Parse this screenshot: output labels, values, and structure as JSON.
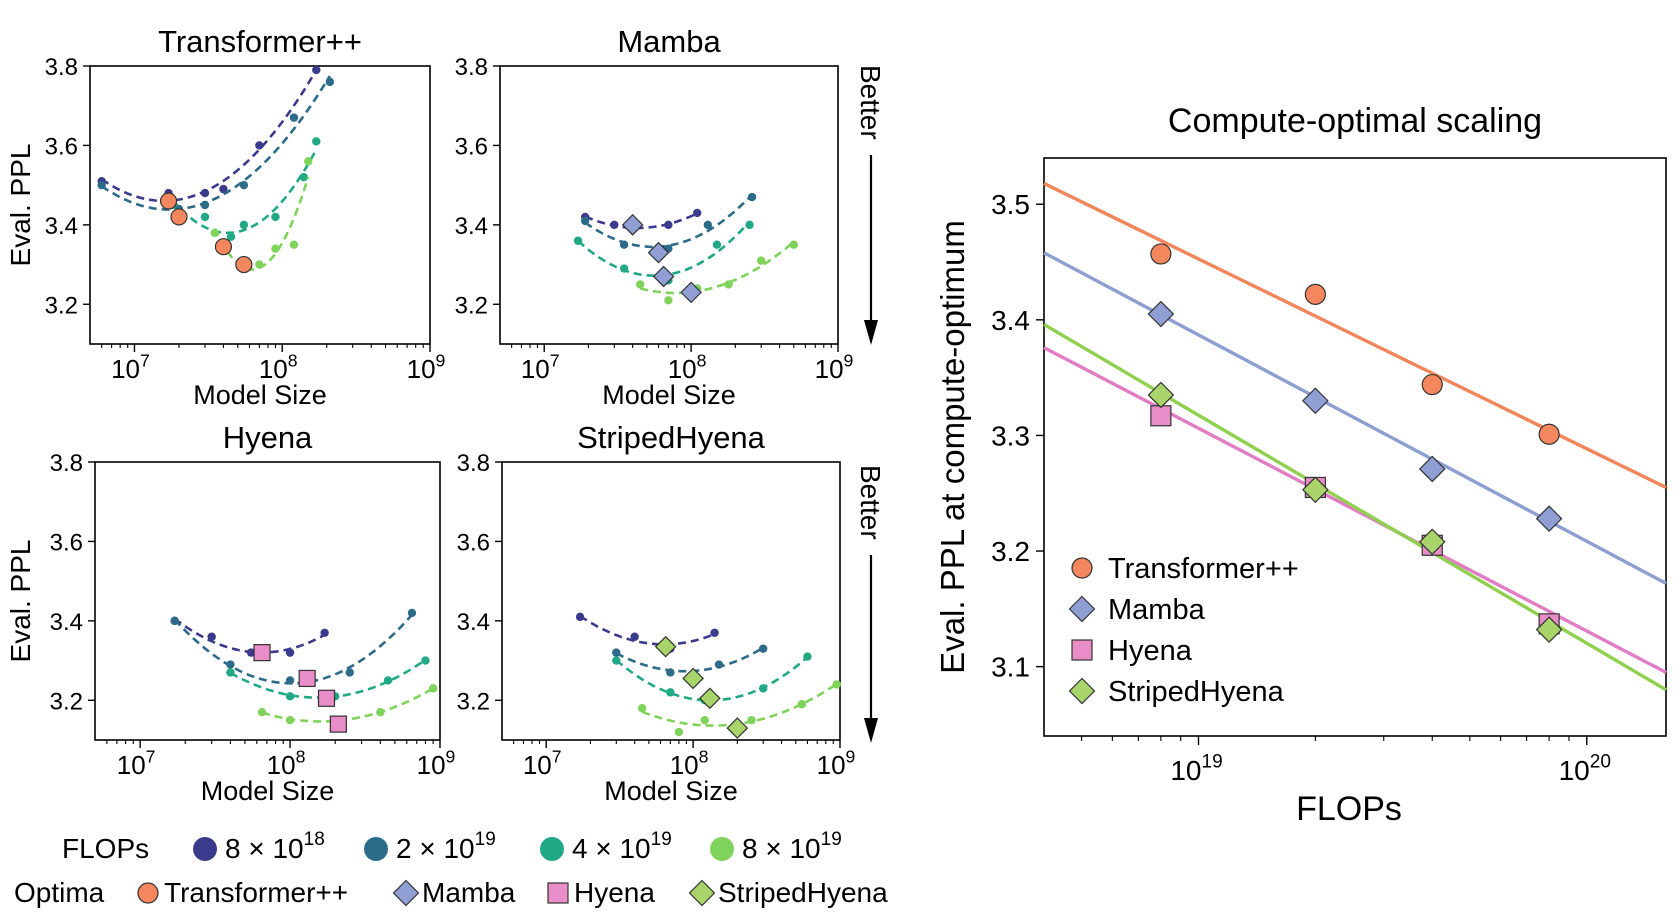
{
  "colors": {
    "flops_8e18": "#3b3b8e",
    "flops_2e19": "#2d6b8a",
    "flops_4e19": "#21a884",
    "flops_8e19": "#7fd35a",
    "transformer": "#f4875d",
    "mamba": "#8f9fd4",
    "hyena": "#e98dc8",
    "stripedhyena": "#a8d46a",
    "line_transformer": "#f0865a",
    "line_mamba": "#8d9fd0",
    "line_hyena": "#e27cc4",
    "line_stripedhyena": "#8fd14f"
  },
  "labels": {
    "better": "Better",
    "flops_legend_title": "FLOPs",
    "optima_legend_title": "Optima",
    "flops_items": [
      "8 × 10",
      "2 × 10",
      "4 × 10",
      "8 × 10"
    ],
    "flops_exponents": [
      "18",
      "19",
      "19",
      "19"
    ],
    "optima_items": [
      "Transformer++",
      "Mamba",
      "Hyena",
      "StripedHyena"
    ]
  },
  "chart_data": [
    {
      "type": "scatter",
      "title": "Transformer++",
      "xlabel": "Model Size",
      "ylabel": "Eval. PPL",
      "xscale": "log",
      "xlim": [
        5000000,
        1000000000
      ],
      "ylim": [
        3.1,
        3.8
      ],
      "xtick_labels": [
        "10",
        "10",
        "10"
      ],
      "xtick_exponents": [
        "7",
        "8",
        "9"
      ],
      "ytick_labels": [
        "3.2",
        "3.4",
        "3.6",
        "3.8"
      ],
      "optima_marker": "circle",
      "series": [
        {
          "name": "8 × 10^18",
          "x": [
            6000000,
            17000000,
            30000000,
            40000000,
            70000000,
            170000000
          ],
          "y": [
            3.51,
            3.48,
            3.48,
            3.49,
            3.6,
            3.79
          ]
        },
        {
          "name": "2 × 10^19",
          "x": [
            6000000,
            20000000,
            30000000,
            55000000,
            120000000,
            210000000
          ],
          "y": [
            3.5,
            3.44,
            3.45,
            3.5,
            3.67,
            3.76
          ]
        },
        {
          "name": "4 × 10^19",
          "x": [
            18000000,
            30000000,
            45000000,
            55000000,
            90000000,
            140000000,
            170000000
          ],
          "y": [
            3.45,
            3.42,
            3.37,
            3.4,
            3.42,
            3.52,
            3.61
          ]
        },
        {
          "name": "8 × 10^19",
          "x": [
            35000000,
            55000000,
            70000000,
            90000000,
            120000000,
            150000000
          ],
          "y": [
            3.38,
            3.31,
            3.3,
            3.34,
            3.35,
            3.56
          ]
        }
      ],
      "optima": {
        "x": [
          17000000,
          20000000,
          40000000,
          55000000
        ],
        "y": [
          3.46,
          3.42,
          3.345,
          3.3
        ]
      }
    },
    {
      "type": "scatter",
      "title": "Mamba",
      "xlabel": "Model Size",
      "ylabel": "",
      "xscale": "log",
      "xlim": [
        5000000,
        1000000000
      ],
      "ylim": [
        3.1,
        3.8
      ],
      "xtick_labels": [
        "10",
        "10",
        "10"
      ],
      "xtick_exponents": [
        "7",
        "8",
        "9"
      ],
      "ytick_labels": [
        "3.2",
        "3.4",
        "3.6",
        "3.8"
      ],
      "optima_marker": "diamond",
      "series": [
        {
          "name": "8 × 10^18",
          "x": [
            19000000,
            30000000,
            70000000,
            110000000
          ],
          "y": [
            3.42,
            3.4,
            3.4,
            3.43
          ]
        },
        {
          "name": "2 × 10^19",
          "x": [
            19000000,
            35000000,
            70000000,
            130000000,
            260000000
          ],
          "y": [
            3.41,
            3.35,
            3.34,
            3.4,
            3.47
          ]
        },
        {
          "name": "4 × 10^19",
          "x": [
            17000000,
            35000000,
            70000000,
            150000000,
            250000000
          ],
          "y": [
            3.36,
            3.29,
            3.26,
            3.35,
            3.4
          ]
        },
        {
          "name": "8 × 10^19",
          "x": [
            45000000,
            70000000,
            110000000,
            180000000,
            300000000,
            500000000
          ],
          "y": [
            3.25,
            3.21,
            3.24,
            3.25,
            3.31,
            3.35
          ]
        }
      ],
      "optima": {
        "x": [
          40000000,
          60000000,
          65000000,
          100000000
        ],
        "y": [
          3.4,
          3.33,
          3.27,
          3.23
        ]
      }
    },
    {
      "type": "scatter",
      "title": "Hyena",
      "xlabel": "Model Size",
      "ylabel": "Eval. PPL",
      "xscale": "log",
      "xlim": [
        5000000,
        1000000000
      ],
      "ylim": [
        3.1,
        3.8
      ],
      "xtick_labels": [
        "10",
        "10",
        "10"
      ],
      "xtick_exponents": [
        "7",
        "8",
        "9"
      ],
      "ytick_labels": [
        "3.2",
        "3.4",
        "3.6",
        "3.8"
      ],
      "optima_marker": "square",
      "series": [
        {
          "name": "8 × 10^18",
          "x": [
            17000000,
            30000000,
            55000000,
            100000000,
            170000000
          ],
          "y": [
            3.4,
            3.36,
            3.32,
            3.32,
            3.37
          ]
        },
        {
          "name": "2 × 10^19",
          "x": [
            17000000,
            40000000,
            100000000,
            250000000,
            650000000
          ],
          "y": [
            3.4,
            3.29,
            3.25,
            3.27,
            3.42
          ]
        },
        {
          "name": "4 × 10^19",
          "x": [
            40000000,
            100000000,
            200000000,
            450000000,
            800000000
          ],
          "y": [
            3.27,
            3.21,
            3.21,
            3.25,
            3.3
          ]
        },
        {
          "name": "8 × 10^19",
          "x": [
            65000000,
            100000000,
            200000000,
            400000000,
            900000000
          ],
          "y": [
            3.17,
            3.15,
            3.15,
            3.17,
            3.23
          ]
        }
      ],
      "optima": {
        "x": [
          65000000,
          130000000,
          175000000,
          210000000
        ],
        "y": [
          3.32,
          3.255,
          3.205,
          3.14
        ]
      }
    },
    {
      "type": "scatter",
      "title": "StripedHyena",
      "xlabel": "Model Size",
      "ylabel": "",
      "xscale": "log",
      "xlim": [
        5000000,
        1000000000
      ],
      "ylim": [
        3.1,
        3.8
      ],
      "xtick_labels": [
        "10",
        "10",
        "10"
      ],
      "xtick_exponents": [
        "7",
        "8",
        "9"
      ],
      "ytick_labels": [
        "3.2",
        "3.4",
        "3.6",
        "3.8"
      ],
      "optima_marker": "diamond",
      "series": [
        {
          "name": "8 × 10^18",
          "x": [
            17000000,
            40000000,
            70000000,
            140000000
          ],
          "y": [
            3.41,
            3.36,
            3.33,
            3.37
          ]
        },
        {
          "name": "2 × 10^19",
          "x": [
            30000000,
            70000000,
            150000000,
            300000000
          ],
          "y": [
            3.32,
            3.27,
            3.29,
            3.33
          ]
        },
        {
          "name": "4 × 10^19",
          "x": [
            30000000,
            70000000,
            120000000,
            300000000,
            600000000
          ],
          "y": [
            3.3,
            3.22,
            3.2,
            3.23,
            3.31
          ]
        },
        {
          "name": "8 × 10^19",
          "x": [
            45000000,
            80000000,
            120000000,
            250000000,
            550000000,
            950000000
          ],
          "y": [
            3.18,
            3.12,
            3.15,
            3.15,
            3.19,
            3.24
          ]
        }
      ],
      "optima": {
        "x": [
          65000000,
          100000000,
          130000000,
          200000000
        ],
        "y": [
          3.335,
          3.255,
          3.205,
          3.13
        ]
      }
    },
    {
      "type": "scatter",
      "title": "Compute-optimal scaling",
      "xlabel": "FLOPs",
      "ylabel": "Eval. PPL at compute-optimum",
      "xscale": "log",
      "xlim": [
        4000000000000000000,
        160000000000000000000
      ],
      "ylim": [
        3.04,
        3.54
      ],
      "xtick_labels": [
        "10",
        "10"
      ],
      "xtick_exponents": [
        "19",
        "20"
      ],
      "ytick_labels": [
        "3.1",
        "3.2",
        "3.3",
        "3.4",
        "3.5"
      ],
      "series": [
        {
          "name": "Transformer++",
          "marker": "circle",
          "x": [
            8000000000000000000,
            20000000000000000000,
            40000000000000000000,
            80000000000000000000
          ],
          "y": [
            3.457,
            3.422,
            3.344,
            3.301
          ],
          "fit_y": [
            3.518,
            3.255
          ]
        },
        {
          "name": "Mamba",
          "marker": "diamond",
          "x": [
            8000000000000000000,
            20000000000000000000,
            40000000000000000000,
            80000000000000000000
          ],
          "y": [
            3.405,
            3.33,
            3.271,
            3.228
          ],
          "fit_y": [
            3.458,
            3.172
          ]
        },
        {
          "name": "Hyena",
          "marker": "square",
          "x": [
            8000000000000000000,
            20000000000000000000,
            40000000000000000000,
            80000000000000000000
          ],
          "y": [
            3.317,
            3.255,
            3.205,
            3.137
          ],
          "fit_y": [
            3.376,
            3.095
          ]
        },
        {
          "name": "StripedHyena",
          "marker": "diamond",
          "x": [
            8000000000000000000,
            20000000000000000000,
            40000000000000000000,
            80000000000000000000
          ],
          "y": [
            3.335,
            3.253,
            3.208,
            3.132
          ],
          "fit_y": [
            3.396,
            3.08
          ]
        }
      ]
    }
  ]
}
